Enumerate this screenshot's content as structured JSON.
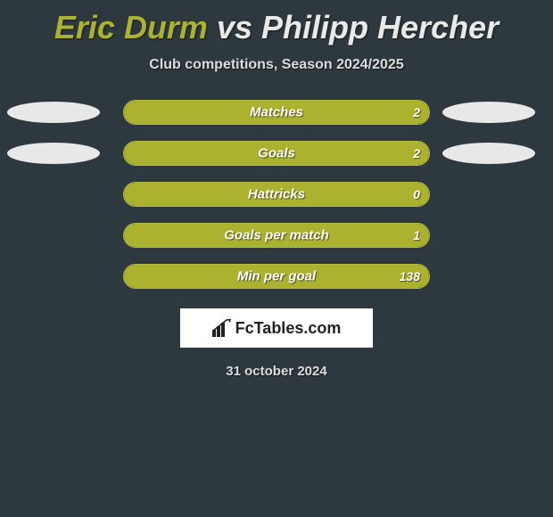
{
  "title": {
    "player1": "Eric Durm",
    "vs": "vs",
    "player2": "Philipp Hercher",
    "color_p1": "#aab230",
    "color_vs": "#e9e9e8",
    "color_p2": "#e9e9e8"
  },
  "subtitle": "Club competitions, Season 2024/2025",
  "layout": {
    "bar_track_width": 344,
    "bar_track_height": 28,
    "row_gap": 18,
    "ellipse_width": 104,
    "ellipse_height": 24,
    "ellipse_color": "#e8e8e8"
  },
  "colors": {
    "background": "#2e393f",
    "accent": "#aab230",
    "bar_border": "#b3bb3f",
    "text_light": "#ffffff",
    "subtitle": "#dcdcdc"
  },
  "stats": [
    {
      "label": "Matches",
      "left_val": "",
      "right_val": "2",
      "left_pct": 0,
      "right_pct": 100,
      "left_ellipse": true,
      "right_ellipse": true
    },
    {
      "label": "Goals",
      "left_val": "",
      "right_val": "2",
      "left_pct": 0,
      "right_pct": 100,
      "left_ellipse": true,
      "right_ellipse": true
    },
    {
      "label": "Hattricks",
      "left_val": "",
      "right_val": "0",
      "left_pct": 0,
      "right_pct": 100,
      "left_ellipse": false,
      "right_ellipse": false
    },
    {
      "label": "Goals per match",
      "left_val": "",
      "right_val": "1",
      "left_pct": 0,
      "right_pct": 100,
      "left_ellipse": false,
      "right_ellipse": false
    },
    {
      "label": "Min per goal",
      "left_val": "",
      "right_val": "138",
      "left_pct": 0,
      "right_pct": 100,
      "left_ellipse": false,
      "right_ellipse": false
    }
  ],
  "brand": {
    "text": "FcTables.com"
  },
  "date": "31 october 2024"
}
